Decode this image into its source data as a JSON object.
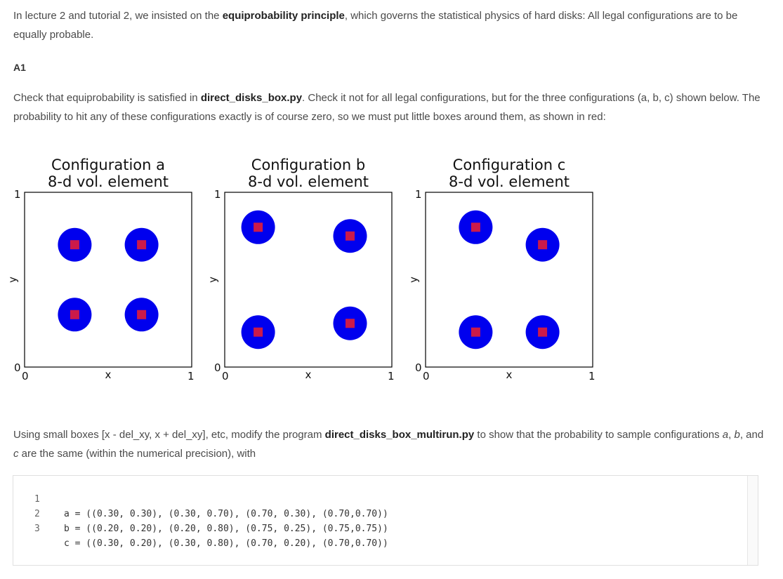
{
  "intro": {
    "t1": "In lecture 2 and tutorial 2, we insisted on the ",
    "bold": "equiprobability principle",
    "t2": ", which governs the statistical physics of hard disks: All legal configurations  are to be equally probable."
  },
  "heading": "A1",
  "para2": {
    "t1": "Check that equiprobability is satisfied in ",
    "bold": "direct_disks_box.py",
    "t2": ". Check it not for all legal configurations, but for the three configurations (a, b, c) shown below. The probability to hit any of these configurations exactly is of course zero, so we must put little boxes around them, as shown in red:"
  },
  "para3": {
    "t1": "Using  small boxes [x - del_xy, x + del_xy], etc,  modify the program  ",
    "bold": "direct_disks_box_multirun.py",
    "t2": " to show that the probability to sample configurations ",
    "a": "a",
    "sep1": ", ",
    "b": "b",
    "sep2": ", and ",
    "c": "c",
    "t3": " are the same (within the numerical  precision), with"
  },
  "chart_data": [
    {
      "type": "scatter",
      "title": "Configuration a",
      "subtitle": "8-d vol. element",
      "xlabel": "x",
      "ylabel": "y",
      "xlim": [
        0,
        1
      ],
      "ylim": [
        0,
        1
      ],
      "xticks": [
        "0",
        "1"
      ],
      "yticks": [
        "0",
        "1"
      ],
      "points": [
        [
          0.3,
          0.3
        ],
        [
          0.3,
          0.7
        ],
        [
          0.7,
          0.3
        ],
        [
          0.7,
          0.7
        ]
      ]
    },
    {
      "type": "scatter",
      "title": "Configuration b",
      "subtitle": "8-d vol. element",
      "xlabel": "x",
      "ylabel": "y",
      "xlim": [
        0,
        1
      ],
      "ylim": [
        0,
        1
      ],
      "xticks": [
        "0",
        "1"
      ],
      "yticks": [
        "0",
        "1"
      ],
      "points": [
        [
          0.2,
          0.2
        ],
        [
          0.2,
          0.8
        ],
        [
          0.75,
          0.25
        ],
        [
          0.75,
          0.75
        ]
      ]
    },
    {
      "type": "scatter",
      "title": "Configuration c",
      "subtitle": "8-d vol. element",
      "xlabel": "x",
      "ylabel": "y",
      "xlim": [
        0,
        1
      ],
      "ylim": [
        0,
        1
      ],
      "xticks": [
        "0",
        "1"
      ],
      "yticks": [
        "0",
        "1"
      ],
      "points": [
        [
          0.3,
          0.2
        ],
        [
          0.3,
          0.8
        ],
        [
          0.7,
          0.2
        ],
        [
          0.7,
          0.7
        ]
      ]
    }
  ],
  "colors": {
    "disk": "#0000ee",
    "box": "#cc1a4a",
    "frame": "#000000"
  },
  "code": {
    "lines": [
      {
        "n": "1",
        "text": "a = ((0.30, 0.30), (0.30, 0.70), (0.70, 0.30), (0.70,0.70))"
      },
      {
        "n": "2",
        "text": "b = ((0.20, 0.20), (0.20, 0.80), (0.75, 0.25), (0.75,0.75))"
      },
      {
        "n": "3",
        "text": "c = ((0.30, 0.20), (0.30, 0.80), (0.70, 0.20), (0.70,0.70))"
      }
    ]
  }
}
